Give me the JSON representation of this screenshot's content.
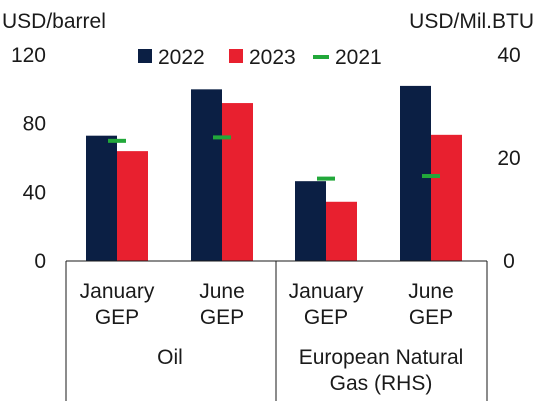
{
  "chart_data": {
    "type": "bar",
    "left_axis_unit": "USD/barrel",
    "right_axis_unit": "USD/Mil.BTU",
    "left_ylim": [
      0,
      120
    ],
    "left_ticks": [
      0,
      40,
      80,
      120
    ],
    "right_ylim": [
      0,
      40
    ],
    "right_ticks": [
      0,
      20,
      40
    ],
    "legend_position": "top",
    "groups": [
      {
        "label": "Oil",
        "axis": "left",
        "categories": [
          {
            "line1": "January",
            "line2": "GEP",
            "v2022": 73,
            "v2023": 64,
            "v2021": 70
          },
          {
            "line1": "June",
            "line2": "GEP",
            "v2022": 100,
            "v2023": 92,
            "v2021": 72
          }
        ]
      },
      {
        "label_line1": "European Natural",
        "label_line2": "Gas (RHS)",
        "axis": "right",
        "categories": [
          {
            "line1": "January",
            "line2": "GEP",
            "v2022": 15.5,
            "v2023": 11.5,
            "v2021": 16
          },
          {
            "line1": "June",
            "line2": "GEP",
            "v2022": 34,
            "v2023": 24.5,
            "v2021": 16.5
          }
        ]
      }
    ],
    "series": [
      {
        "name": "2022",
        "key": "v2022",
        "kind": "bar",
        "color": "#0b1f44"
      },
      {
        "name": "2023",
        "key": "v2023",
        "kind": "bar",
        "color": "#e8202f"
      },
      {
        "name": "2021",
        "key": "v2021",
        "kind": "marker",
        "color": "#22a83a"
      }
    ]
  }
}
